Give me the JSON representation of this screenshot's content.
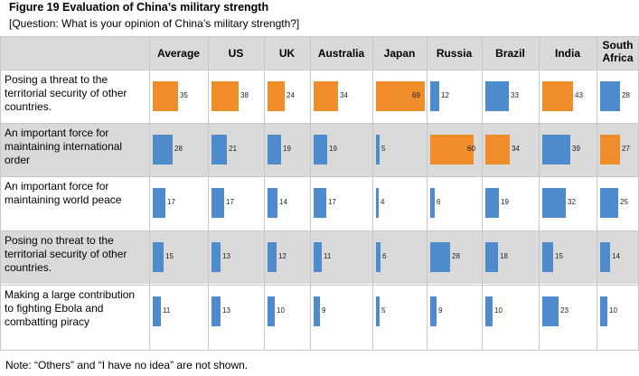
{
  "title": "Figure 19 Evaluation of China’s military strength",
  "question": "[Question: What is your opinion of China’s military strength?]",
  "note": "Note:  “Others”  and  “I have no idea”  are not shown.",
  "colors": {
    "orange": "#f08c2a",
    "blue": "#4e8bcd",
    "band": "#d9d9d9"
  },
  "chart_data": {
    "type": "table",
    "title": "Figure 19 Evaluation of China’s military strength",
    "categories": [
      "Average",
      "US",
      "UK",
      "Australia",
      "Japan",
      "Russia",
      "Brazil",
      "India",
      "South Africa"
    ],
    "series": [
      {
        "name": "Posing a threat to the territorial security of other countries.",
        "values": [
          35,
          38,
          24,
          34,
          69,
          12,
          33,
          43,
          28
        ]
      },
      {
        "name": "An important force for maintaining international order",
        "values": [
          28,
          21,
          19,
          19,
          5,
          60,
          34,
          39,
          27
        ]
      },
      {
        "name": "An important force for maintaining world peace",
        "values": [
          17,
          17,
          14,
          17,
          4,
          6,
          19,
          32,
          25
        ]
      },
      {
        "name": "Posing no threat to the territorial security of other countries.",
        "values": [
          15,
          13,
          12,
          11,
          6,
          28,
          18,
          15,
          14
        ]
      },
      {
        "name": "Making a large contribution to fighting Ebola and combatting piracy",
        "values": [
          11,
          13,
          10,
          9,
          5,
          9,
          10,
          23,
          10
        ]
      }
    ],
    "highlight": [
      [
        "orange",
        "orange",
        "orange",
        "orange",
        "orange",
        "blue",
        "blue",
        "orange",
        "blue"
      ],
      [
        "blue",
        "blue",
        "blue",
        "blue",
        "blue",
        "orange",
        "orange",
        "blue",
        "orange"
      ],
      [
        "blue",
        "blue",
        "blue",
        "blue",
        "blue",
        "blue",
        "blue",
        "blue",
        "blue"
      ],
      [
        "blue",
        "blue",
        "blue",
        "blue",
        "blue",
        "blue",
        "blue",
        "blue",
        "blue"
      ],
      [
        "blue",
        "blue",
        "blue",
        "blue",
        "blue",
        "blue",
        "blue",
        "blue",
        "blue"
      ]
    ]
  }
}
